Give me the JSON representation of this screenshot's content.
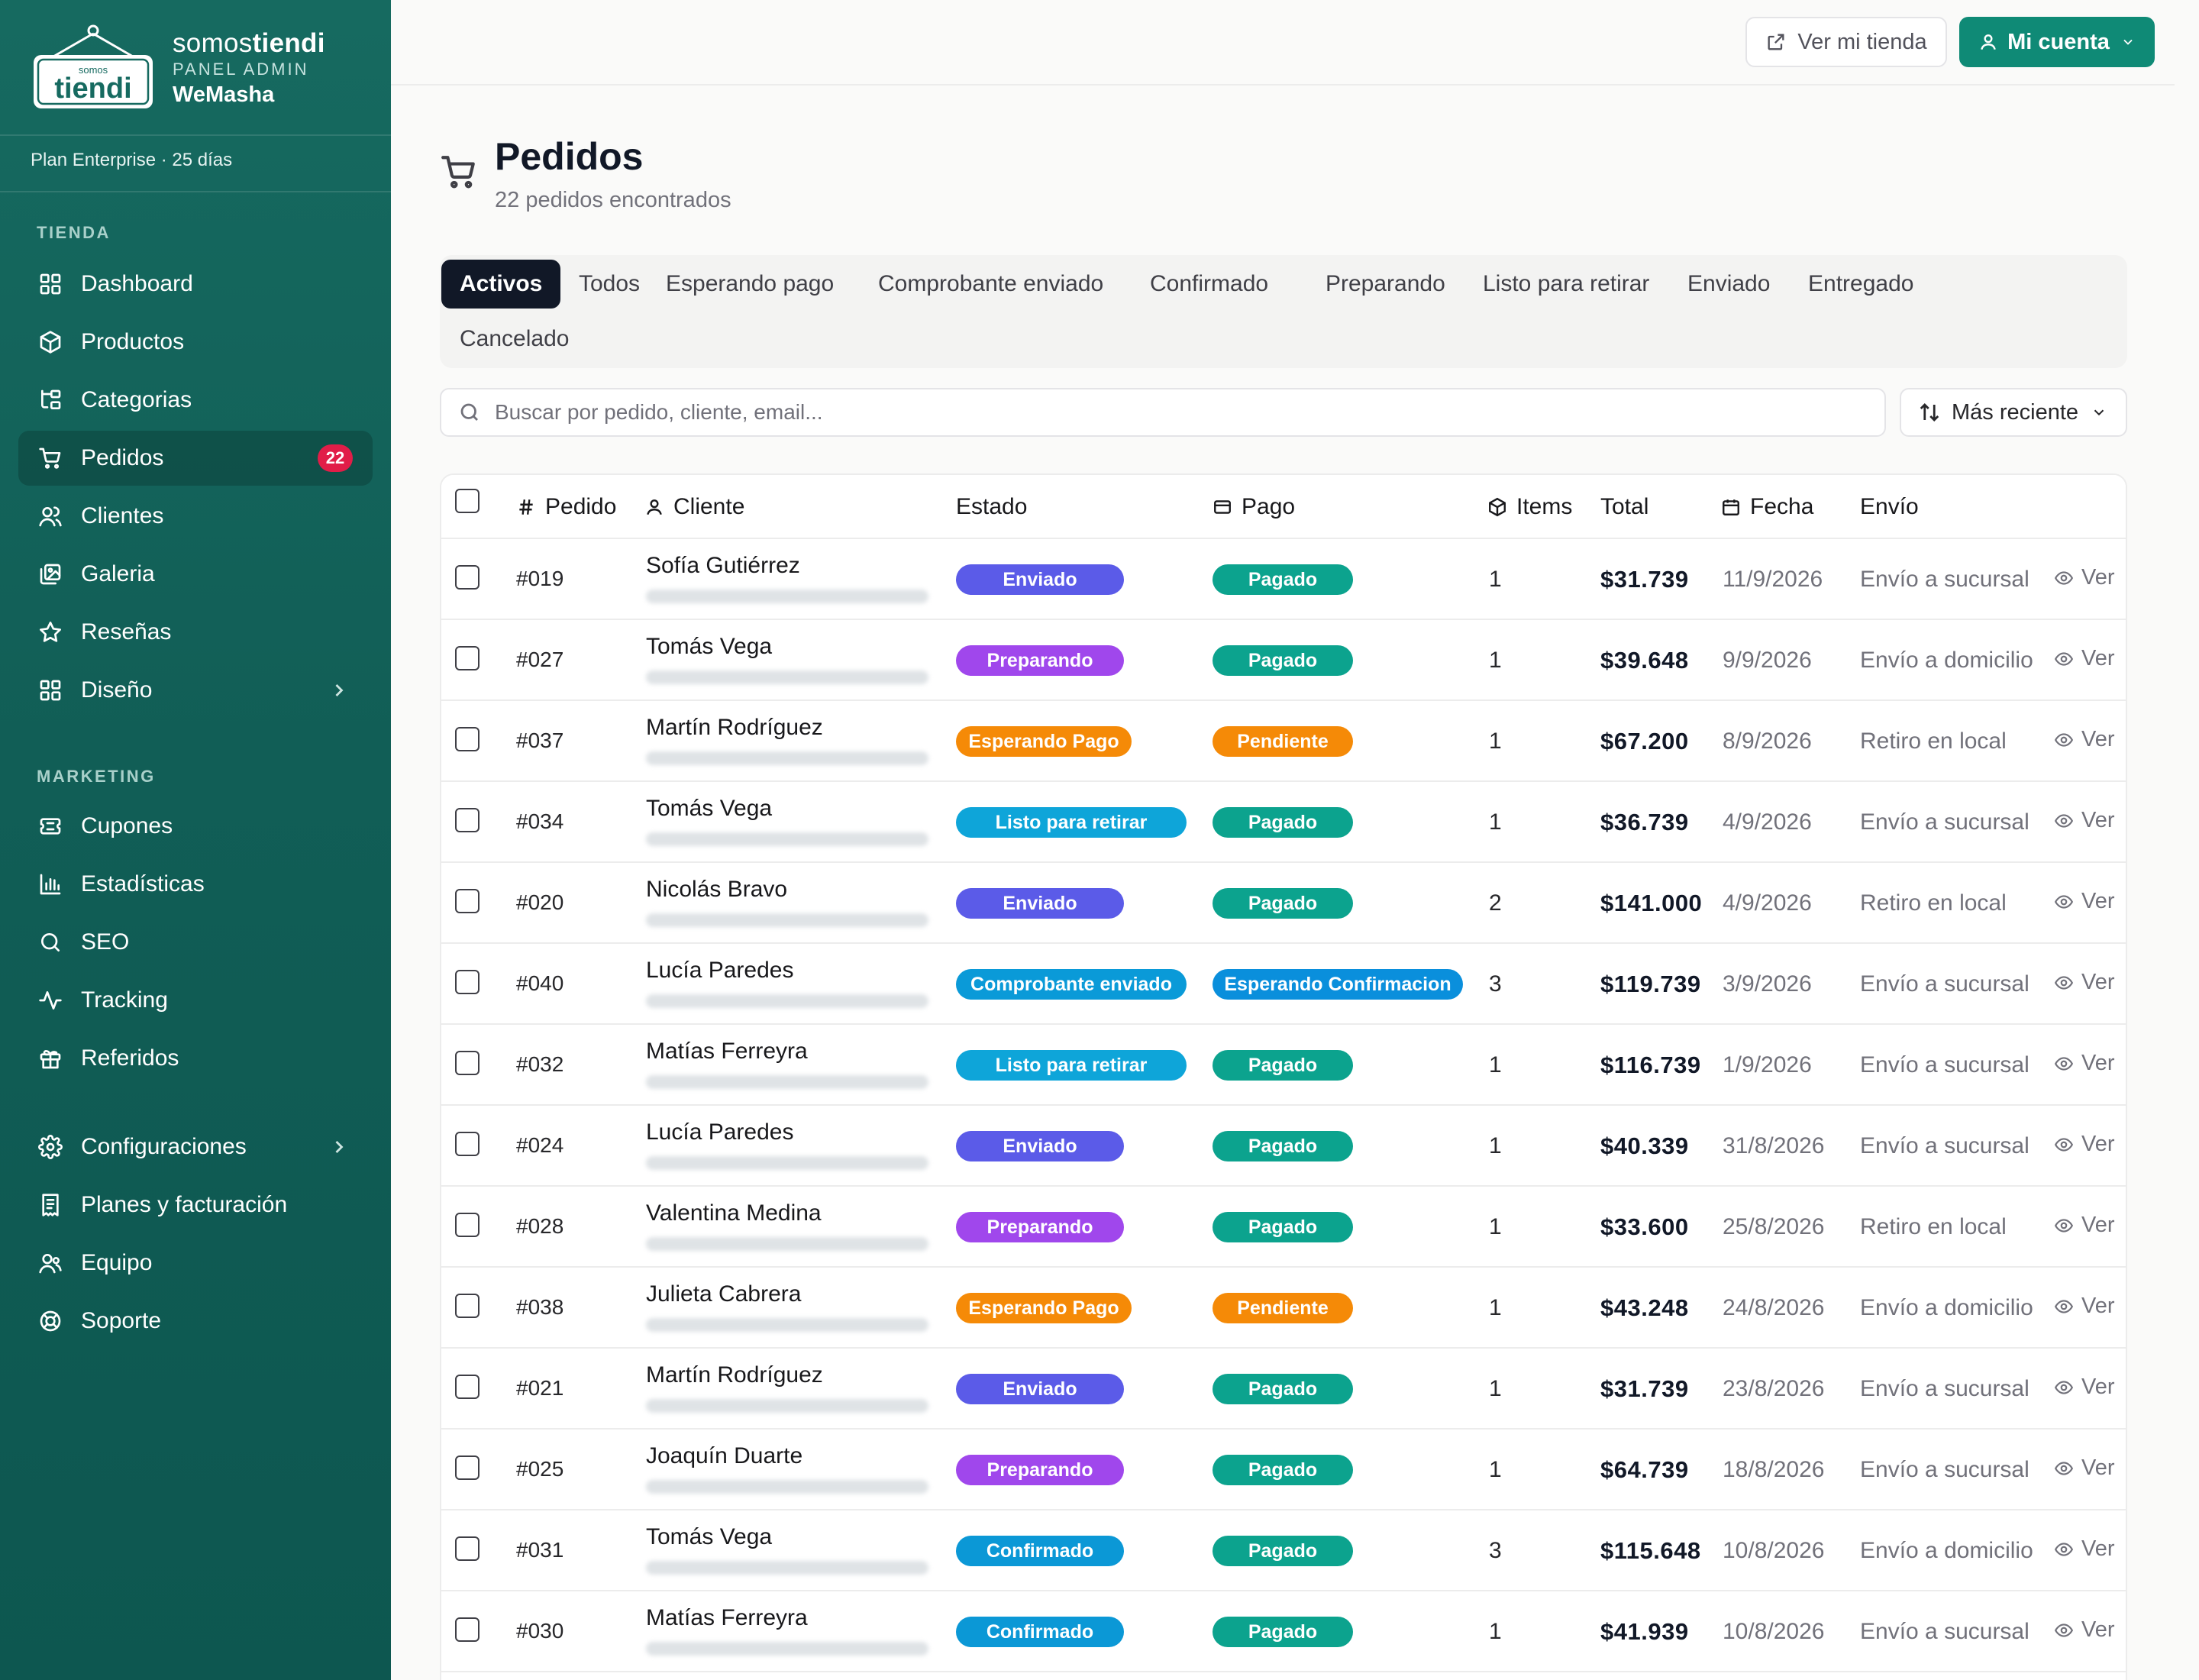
{
  "brand": {
    "name_light": "somos",
    "name_bold": "tiendi",
    "panel_label": "PANEL ADMIN",
    "store_name": "WeMasha",
    "logo_small": "somos",
    "logo_big": "tiendi"
  },
  "plan": "Plan Enterprise · 25 días",
  "sidebar": {
    "sections": [
      {
        "title": "TIENDA",
        "items": [
          {
            "label": "Dashboard",
            "icon": "dashboard-icon"
          },
          {
            "label": "Productos",
            "icon": "box-icon"
          },
          {
            "label": "Categorias",
            "icon": "categories-icon"
          },
          {
            "label": "Pedidos",
            "icon": "cart-icon",
            "badge": "22",
            "active": true
          },
          {
            "label": "Clientes",
            "icon": "users-icon"
          },
          {
            "label": "Galeria",
            "icon": "gallery-icon"
          },
          {
            "label": "Reseñas",
            "icon": "star-icon"
          },
          {
            "label": "Diseño",
            "icon": "layout-icon",
            "chevron": true
          }
        ]
      },
      {
        "title": "MARKETING",
        "items": [
          {
            "label": "Cupones",
            "icon": "ticket-icon"
          },
          {
            "label": "Estadísticas",
            "icon": "bar-chart-icon"
          },
          {
            "label": "SEO",
            "icon": "search-icon"
          },
          {
            "label": "Tracking",
            "icon": "activity-icon"
          },
          {
            "label": "Referidos",
            "icon": "gift-icon"
          }
        ]
      },
      {
        "title": "",
        "items": [
          {
            "label": "Configuraciones",
            "icon": "gear-icon",
            "chevron": true
          },
          {
            "label": "Planes y facturación",
            "icon": "receipt-icon"
          },
          {
            "label": "Equipo",
            "icon": "team-icon"
          },
          {
            "label": "Soporte",
            "icon": "lifebuoy-icon"
          }
        ]
      }
    ]
  },
  "topbar": {
    "store_button": "Ver mi tienda",
    "account_button": "Mi cuenta"
  },
  "header": {
    "title": "Pedidos",
    "subtitle": "22 pedidos encontrados"
  },
  "tabs": [
    "Activos",
    "Todos",
    "Esperando pago",
    "Comprobante enviado",
    "Confirmado",
    "Preparando",
    "Listo para retirar",
    "Enviado",
    "Entregado",
    "Cancelado"
  ],
  "active_tab": "Activos",
  "search": {
    "placeholder": "Buscar por pedido, cliente, email..."
  },
  "sort": {
    "label": "Más reciente"
  },
  "table": {
    "columns": {
      "order": "Pedido",
      "customer": "Cliente",
      "status": "Estado",
      "payment": "Pago",
      "items": "Items",
      "total": "Total",
      "date": "Fecha",
      "shipping": "Envío"
    },
    "view_label": "Ver",
    "status_colors": {
      "Enviado": "#5b5be8",
      "Preparando": "#a047ec",
      "Esperando Pago": "#f58a07",
      "Listo para retirar": "#0ea5d9",
      "Comprobante enviado": "#0a9ad8",
      "Confirmado": "#0b98d6"
    },
    "payment_colors": {
      "Pagado": "#0ca38e",
      "Pendiente": "#f58a07",
      "Esperando Confirmacion": "#0a8fdc"
    },
    "rows": [
      {
        "id": "#019",
        "customer": "Sofía Gutiérrez",
        "status": "Enviado",
        "payment": "Pagado",
        "items": "1",
        "total": "$31.739",
        "date": "11/9/2026",
        "shipping": "Envío a sucursal"
      },
      {
        "id": "#027",
        "customer": "Tomás Vega",
        "status": "Preparando",
        "payment": "Pagado",
        "items": "1",
        "total": "$39.648",
        "date": "9/9/2026",
        "shipping": "Envío a domicilio"
      },
      {
        "id": "#037",
        "customer": "Martín Rodríguez",
        "status": "Esperando Pago",
        "payment": "Pendiente",
        "items": "1",
        "total": "$67.200",
        "date": "8/9/2026",
        "shipping": "Retiro en local"
      },
      {
        "id": "#034",
        "customer": "Tomás Vega",
        "status": "Listo para retirar",
        "payment": "Pagado",
        "items": "1",
        "total": "$36.739",
        "date": "4/9/2026",
        "shipping": "Envío a sucursal"
      },
      {
        "id": "#020",
        "customer": "Nicolás Bravo",
        "status": "Enviado",
        "payment": "Pagado",
        "items": "2",
        "total": "$141.000",
        "date": "4/9/2026",
        "shipping": "Retiro en local"
      },
      {
        "id": "#040",
        "customer": "Lucía Paredes",
        "status": "Comprobante enviado",
        "payment": "Esperando Confirmacion",
        "items": "3",
        "total": "$119.739",
        "date": "3/9/2026",
        "shipping": "Envío a sucursal"
      },
      {
        "id": "#032",
        "customer": "Matías Ferreyra",
        "status": "Listo para retirar",
        "payment": "Pagado",
        "items": "1",
        "total": "$116.739",
        "date": "1/9/2026",
        "shipping": "Envío a sucursal"
      },
      {
        "id": "#024",
        "customer": "Lucía Paredes",
        "status": "Enviado",
        "payment": "Pagado",
        "items": "1",
        "total": "$40.339",
        "date": "31/8/2026",
        "shipping": "Envío a sucursal"
      },
      {
        "id": "#028",
        "customer": "Valentina Medina",
        "status": "Preparando",
        "payment": "Pagado",
        "items": "1",
        "total": "$33.600",
        "date": "25/8/2026",
        "shipping": "Retiro en local"
      },
      {
        "id": "#038",
        "customer": "Julieta Cabrera",
        "status": "Esperando Pago",
        "payment": "Pendiente",
        "items": "1",
        "total": "$43.248",
        "date": "24/8/2026",
        "shipping": "Envío a domicilio"
      },
      {
        "id": "#021",
        "customer": "Martín Rodríguez",
        "status": "Enviado",
        "payment": "Pagado",
        "items": "1",
        "total": "$31.739",
        "date": "23/8/2026",
        "shipping": "Envío a sucursal"
      },
      {
        "id": "#025",
        "customer": "Joaquín Duarte",
        "status": "Preparando",
        "payment": "Pagado",
        "items": "1",
        "total": "$64.739",
        "date": "18/8/2026",
        "shipping": "Envío a sucursal"
      },
      {
        "id": "#031",
        "customer": "Tomás Vega",
        "status": "Confirmado",
        "payment": "Pagado",
        "items": "3",
        "total": "$115.648",
        "date": "10/8/2026",
        "shipping": "Envío a domicilio"
      },
      {
        "id": "#030",
        "customer": "Matías Ferreyra",
        "status": "Confirmado",
        "payment": "Pagado",
        "items": "1",
        "total": "$41.939",
        "date": "10/8/2026",
        "shipping": "Envío a sucursal"
      }
    ]
  }
}
